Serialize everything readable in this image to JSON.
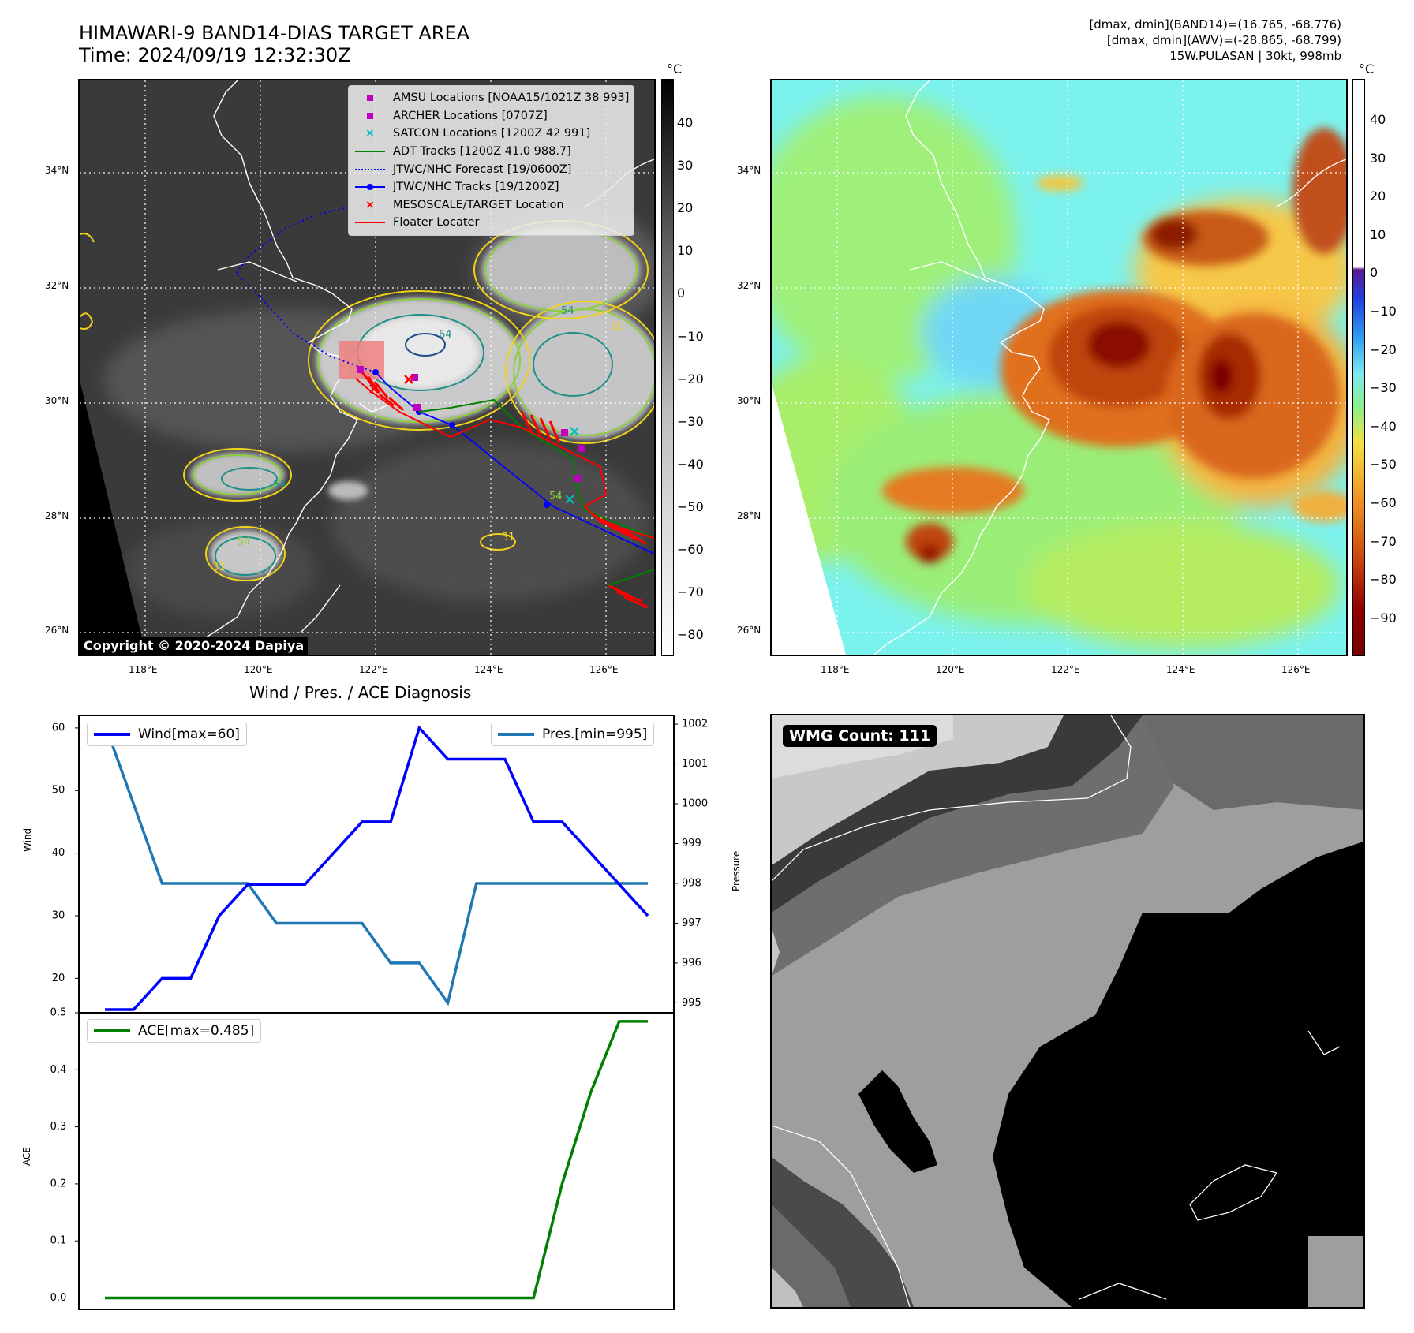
{
  "header": {
    "title_line1": "HIMAWARI-9 BAND14-DIAS TARGET AREA",
    "title_line2": "Time: 2024/09/19 12:32:30Z",
    "info_line1": "[dmax, dmin](BAND14)=(16.765, -68.776)",
    "info_line2": "[dmax, dmin](AWV)=(-28.865, -68.799)",
    "info_line3": "15W.PULASAN | 30kt, 998mb"
  },
  "map_axes": {
    "lat_labels": [
      "34°N",
      "32°N",
      "30°N",
      "28°N",
      "26°N"
    ],
    "lon_labels": [
      "118°E",
      "120°E",
      "122°E",
      "124°E",
      "126°E"
    ]
  },
  "ir_panel": {
    "copyright": "Copyright © 2020-2024 Dapiya",
    "colorbar_unit": "°C",
    "colorbar_ticks": [
      "40",
      "30",
      "20",
      "10",
      "0",
      "−10",
      "−20",
      "−30",
      "−40",
      "−50",
      "−60",
      "−70",
      "−80"
    ],
    "legend": [
      {
        "label": "AMSU Locations [NOAA15/1021Z 38 993]",
        "symbol": "square",
        "color": "#bf00bf"
      },
      {
        "label": "ARCHER Locations [0707Z]",
        "symbol": "square",
        "color": "#bf00bf"
      },
      {
        "label": "SATCON Locations [1200Z 42 991]",
        "symbol": "x",
        "color": "#00bfbf"
      },
      {
        "label": "ADT Tracks [1200Z 41.0 988.7]",
        "symbol": "line",
        "color": "#008000"
      },
      {
        "label": "JTWC/NHC Forecast [19/0600Z]",
        "symbol": "dotted",
        "color": "#0000ff"
      },
      {
        "label": "JTWC/NHC Tracks [19/1200Z]",
        "symbol": "line-dot",
        "color": "#0000ff"
      },
      {
        "label": "MESOSCALE/TARGET Location",
        "symbol": "x",
        "color": "#ff0000"
      },
      {
        "label": "Floater Locater",
        "symbol": "line",
        "color": "#ff0000"
      }
    ],
    "contour_labels": [
      "54",
      "64",
      "54",
      "31",
      "54",
      "31",
      "54",
      "31"
    ]
  },
  "awv_panel": {
    "colorbar_unit": "°C",
    "colorbar_ticks": [
      "40",
      "30",
      "20",
      "10",
      "0",
      "−10",
      "−20",
      "−30",
      "−40",
      "−50",
      "−60",
      "−70",
      "−80",
      "−90"
    ]
  },
  "wmg_panel": {
    "label": "WMG Count: 111"
  },
  "chart_data": [
    {
      "type": "line",
      "title": "Wind / Pres. / ACE Diagnosis",
      "ylabel": "Wind",
      "y2label": "Pressure",
      "ylim": [
        14.5,
        62.0
      ],
      "y2lim": [
        994.75,
        1002.22
      ],
      "yticks": [
        "60",
        "50",
        "40",
        "30",
        "20"
      ],
      "y2ticks": [
        "1002",
        "1001",
        "1000",
        "999",
        "998",
        "997",
        "996",
        "995"
      ],
      "x": [
        0,
        1,
        2,
        3,
        4,
        5,
        6,
        7,
        8,
        9,
        10,
        11,
        12,
        13,
        14,
        15,
        16,
        17,
        18,
        19
      ],
      "series": [
        {
          "name": "Wind[max=60]",
          "axis": "left",
          "color": "#0000ff",
          "values": [
            15,
            15,
            20,
            20,
            30,
            35,
            35,
            35,
            40,
            45,
            45,
            60,
            55,
            55,
            55,
            45,
            45,
            40,
            35,
            30
          ]
        },
        {
          "name": "Pres.[min=995]",
          "axis": "right",
          "color": "#1f77b4",
          "values": [
            1002,
            1000,
            998,
            998,
            998,
            998,
            997,
            997,
            997,
            997,
            996,
            996,
            995,
            998,
            998,
            998,
            998,
            998,
            998,
            998
          ]
        }
      ]
    },
    {
      "type": "line",
      "ylabel": "ACE",
      "ylim": [
        -0.02,
        0.5
      ],
      "yticks": [
        "0.5",
        "0.4",
        "0.3",
        "0.2",
        "0.1",
        "0.0"
      ],
      "x": [
        0,
        1,
        2,
        3,
        4,
        5,
        6,
        7,
        8,
        9,
        10,
        11,
        12,
        13,
        14,
        15,
        16,
        17,
        18,
        19
      ],
      "series": [
        {
          "name": "ACE[max=0.485]",
          "color": "#008000",
          "values": [
            0,
            0,
            0,
            0,
            0,
            0,
            0,
            0,
            0,
            0,
            0,
            0,
            0,
            0,
            0,
            0,
            0.2,
            0.36,
            0.485,
            0.485
          ]
        }
      ]
    }
  ]
}
